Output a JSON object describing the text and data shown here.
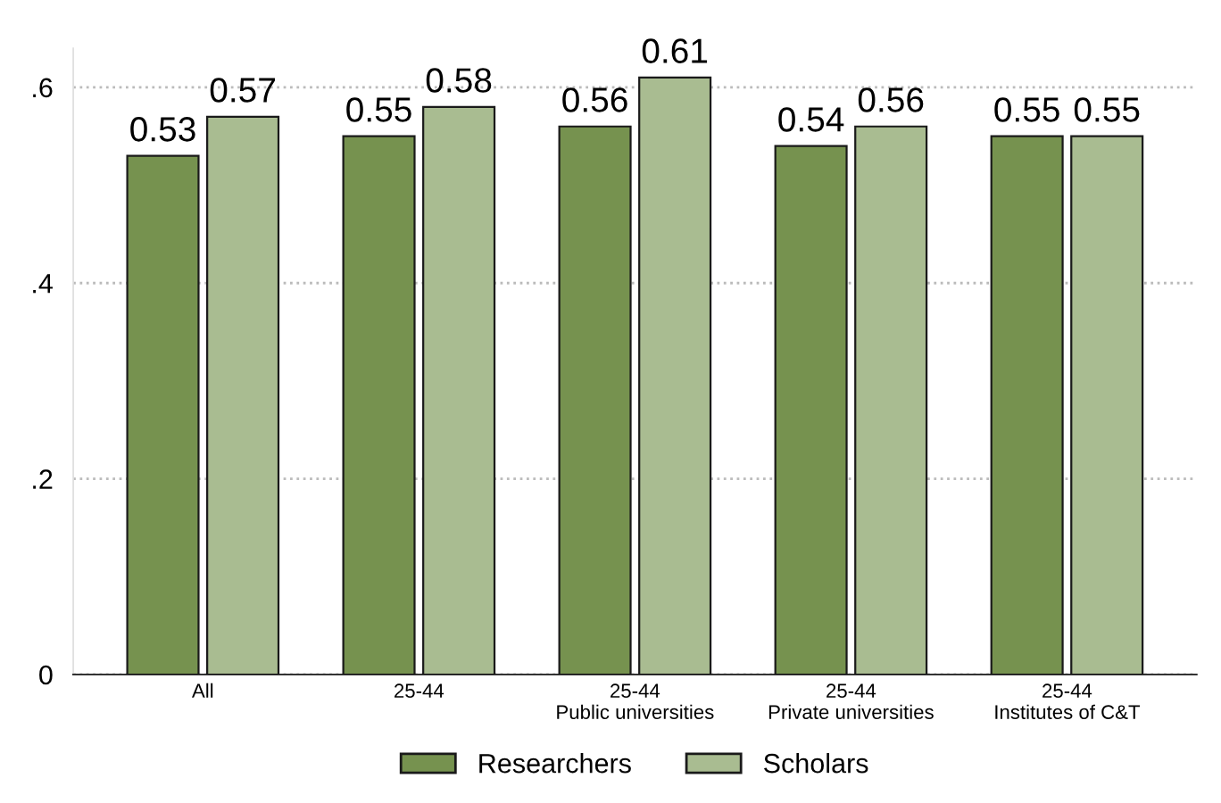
{
  "chart_data": {
    "type": "bar",
    "categories": [
      "All",
      "25-44",
      "25-44\nPublic universities",
      "25-44\nPrivate universities",
      "25-44\nInstitutes of C&T"
    ],
    "series": [
      {
        "name": "Researchers",
        "color": "#76924f",
        "values": [
          0.53,
          0.55,
          0.56,
          0.54,
          0.55
        ]
      },
      {
        "name": "Scholars",
        "color": "#a9bc91",
        "values": [
          0.57,
          0.58,
          0.61,
          0.56,
          0.55
        ]
      }
    ],
    "ylim": [
      0,
      0.64
    ],
    "yticks": [
      0,
      {
        "value": 0.2,
        "label": ".2"
      },
      {
        "value": 0.4,
        "label": ".4"
      },
      {
        "value": 0.6,
        "label": ".6"
      }
    ],
    "grid": "y",
    "legend": "bottom",
    "data_labels": true
  }
}
